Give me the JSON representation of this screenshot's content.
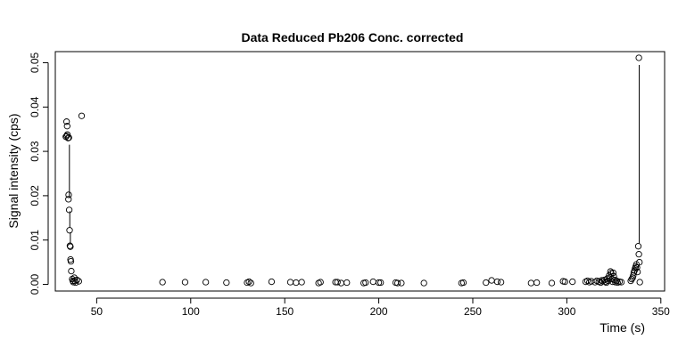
{
  "chart_data": {
    "type": "scatter",
    "title": "Data Reduced Pb206 Conc. corrected",
    "xlabel": "Time (s)",
    "ylabel": "Signal intensity (cps)",
    "xlim": [
      28,
      352
    ],
    "ylim": [
      -0.0015,
      0.0525
    ],
    "xticks": [
      50,
      100,
      150,
      200,
      250,
      300,
      350
    ],
    "yticks": [
      0.0,
      0.01,
      0.02,
      0.03,
      0.04,
      0.05
    ],
    "ytick_labels": [
      "0.00",
      "0.01",
      "0.02",
      "0.03",
      "0.04",
      "0.05"
    ],
    "grid": false,
    "lines": [
      {
        "x": [
          35.5,
          35.5
        ],
        "y": [
          0.0315,
          0.0195
        ]
      },
      {
        "x": [
          35.7,
          35.7
        ],
        "y": [
          0.0165,
          0.0128
        ]
      },
      {
        "x": [
          36.0,
          36.0
        ],
        "y": [
          0.0118,
          0.0093
        ]
      },
      {
        "x": [
          338.5,
          338.5
        ],
        "y": [
          0.0495,
          0.0093
        ]
      }
    ],
    "points": [
      {
        "x": 34.0,
        "y": 0.0367
      },
      {
        "x": 34.3,
        "y": 0.0357
      },
      {
        "x": 34.0,
        "y": 0.0335
      },
      {
        "x": 33.6,
        "y": 0.0333
      },
      {
        "x": 34.4,
        "y": 0.0338
      },
      {
        "x": 35.2,
        "y": 0.0331
      },
      {
        "x": 34.8,
        "y": 0.033
      },
      {
        "x": 35.1,
        "y": 0.0202
      },
      {
        "x": 35.0,
        "y": 0.0192
      },
      {
        "x": 35.4,
        "y": 0.0168
      },
      {
        "x": 35.6,
        "y": 0.0122
      },
      {
        "x": 35.8,
        "y": 0.0087
      },
      {
        "x": 36.0,
        "y": 0.0085
      },
      {
        "x": 36.1,
        "y": 0.0056
      },
      {
        "x": 36.3,
        "y": 0.0052
      },
      {
        "x": 36.5,
        "y": 0.003
      },
      {
        "x": 37.0,
        "y": 0.0012
      },
      {
        "x": 37.3,
        "y": 0.0008
      },
      {
        "x": 37.6,
        "y": 0.0005
      },
      {
        "x": 38.1,
        "y": 0.0015
      },
      {
        "x": 38.4,
        "y": 0.0008
      },
      {
        "x": 38.8,
        "y": 0.0004
      },
      {
        "x": 39.5,
        "y": 0.001
      },
      {
        "x": 40.5,
        "y": 0.0007
      },
      {
        "x": 42.0,
        "y": 0.038
      },
      {
        "x": 85,
        "y": 0.0005
      },
      {
        "x": 97,
        "y": 0.0005
      },
      {
        "x": 108,
        "y": 0.0005
      },
      {
        "x": 119,
        "y": 0.0004
      },
      {
        "x": 130,
        "y": 0.0004
      },
      {
        "x": 131,
        "y": 0.0006
      },
      {
        "x": 132,
        "y": 0.0003
      },
      {
        "x": 143,
        "y": 0.0006
      },
      {
        "x": 153,
        "y": 0.0005
      },
      {
        "x": 156,
        "y": 0.0004
      },
      {
        "x": 159,
        "y": 0.0005
      },
      {
        "x": 168,
        "y": 0.0003
      },
      {
        "x": 169,
        "y": 0.0005
      },
      {
        "x": 177,
        "y": 0.0005
      },
      {
        "x": 178,
        "y": 0.0005
      },
      {
        "x": 180,
        "y": 0.0003
      },
      {
        "x": 183,
        "y": 0.0004
      },
      {
        "x": 192,
        "y": 0.0003
      },
      {
        "x": 193,
        "y": 0.0004
      },
      {
        "x": 197,
        "y": 0.0006
      },
      {
        "x": 200,
        "y": 0.0004
      },
      {
        "x": 201,
        "y": 0.0004
      },
      {
        "x": 209,
        "y": 0.0004
      },
      {
        "x": 210,
        "y": 0.0003
      },
      {
        "x": 212,
        "y": 0.0003
      },
      {
        "x": 224,
        "y": 0.0003
      },
      {
        "x": 244,
        "y": 0.0003
      },
      {
        "x": 245,
        "y": 0.0004
      },
      {
        "x": 257,
        "y": 0.0004
      },
      {
        "x": 260,
        "y": 0.0009
      },
      {
        "x": 263,
        "y": 0.0006
      },
      {
        "x": 265,
        "y": 0.0005
      },
      {
        "x": 281,
        "y": 0.0003
      },
      {
        "x": 284,
        "y": 0.0004
      },
      {
        "x": 292,
        "y": 0.0003
      },
      {
        "x": 298,
        "y": 0.0007
      },
      {
        "x": 299,
        "y": 0.0006
      },
      {
        "x": 303,
        "y": 0.0006
      },
      {
        "x": 310,
        "y": 0.0006
      },
      {
        "x": 311,
        "y": 0.0008
      },
      {
        "x": 312,
        "y": 0.0005
      },
      {
        "x": 313,
        "y": 0.0007
      },
      {
        "x": 315,
        "y": 0.0005
      },
      {
        "x": 316,
        "y": 0.0008
      },
      {
        "x": 317,
        "y": 0.0006
      },
      {
        "x": 318,
        "y": 0.0004
      },
      {
        "x": 318.5,
        "y": 0.0009
      },
      {
        "x": 319,
        "y": 0.0007
      },
      {
        "x": 320,
        "y": 0.001
      },
      {
        "x": 320.5,
        "y": 0.0006
      },
      {
        "x": 321,
        "y": 0.0004
      },
      {
        "x": 321.5,
        "y": 0.0013
      },
      {
        "x": 322,
        "y": 0.0008
      },
      {
        "x": 322.5,
        "y": 0.002
      },
      {
        "x": 323,
        "y": 0.0016
      },
      {
        "x": 323.2,
        "y": 0.0029
      },
      {
        "x": 323.6,
        "y": 0.0025
      },
      {
        "x": 324,
        "y": 0.0012
      },
      {
        "x": 324.3,
        "y": 0.0006
      },
      {
        "x": 324.7,
        "y": 0.0026
      },
      {
        "x": 325,
        "y": 0.0018
      },
      {
        "x": 325.4,
        "y": 0.001
      },
      {
        "x": 325.8,
        "y": 0.0005
      },
      {
        "x": 326.5,
        "y": 0.0008
      },
      {
        "x": 327,
        "y": 0.0004
      },
      {
        "x": 328,
        "y": 0.0006
      },
      {
        "x": 329,
        "y": 0.0005
      },
      {
        "x": 334,
        "y": 0.0008
      },
      {
        "x": 334.5,
        "y": 0.0012
      },
      {
        "x": 335,
        "y": 0.0015
      },
      {
        "x": 335.3,
        "y": 0.002
      },
      {
        "x": 335.6,
        "y": 0.0027
      },
      {
        "x": 336,
        "y": 0.0031
      },
      {
        "x": 336.3,
        "y": 0.0036
      },
      {
        "x": 336.6,
        "y": 0.004
      },
      {
        "x": 337,
        "y": 0.0045
      },
      {
        "x": 337.3,
        "y": 0.0038
      },
      {
        "x": 337.6,
        "y": 0.0028
      },
      {
        "x": 338,
        "y": 0.0086
      },
      {
        "x": 338.3,
        "y": 0.0068
      },
      {
        "x": 338.6,
        "y": 0.005
      },
      {
        "x": 338.8,
        "y": 0.0005
      },
      {
        "x": 338.3,
        "y": 0.0511
      }
    ]
  }
}
